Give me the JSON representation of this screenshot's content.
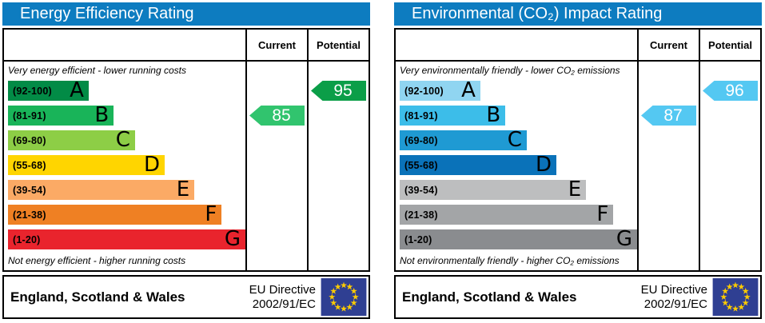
{
  "colors": {
    "title_bar_blue": "#0d7cc0",
    "eu_flag_blue": "#2f3f92",
    "eu_star_yellow": "#ffcc00",
    "border_black": "#000000"
  },
  "panels": [
    {
      "title": "Energy Efficiency Rating",
      "columns": {
        "current": "Current",
        "potential": "Potential"
      },
      "top_caption": "Very energy efficient - lower running costs",
      "bottom_caption": "Not energy efficient - higher running costs",
      "bands": [
        {
          "label": "(92-100)",
          "letter": "A",
          "color": "#028b46",
          "width_pct": 34
        },
        {
          "label": "(81-91)",
          "letter": "B",
          "color": "#19b459",
          "width_pct": 44.5
        },
        {
          "label": "(69-80)",
          "letter": "C",
          "color": "#8dce46",
          "width_pct": 53.5
        },
        {
          "label": "(55-68)",
          "letter": "D",
          "color": "#ffd500",
          "width_pct": 66
        },
        {
          "label": "(39-54)",
          "letter": "E",
          "color": "#fbaa65",
          "width_pct": 78.5
        },
        {
          "label": "(21-38)",
          "letter": "F",
          "color": "#ef8023",
          "width_pct": 90
        },
        {
          "label": "(1-20)",
          "letter": "G",
          "color": "#e9242d",
          "width_pct": 100
        }
      ],
      "current": {
        "value": "85",
        "band_index": 1,
        "color": "#31c46e"
      },
      "potential": {
        "value": "95",
        "band_index": 0,
        "color": "#0b9e48"
      },
      "footer": {
        "region": "England, Scotland & Wales",
        "directive_line1": "EU Directive",
        "directive_line2": "2002/91/EC"
      }
    },
    {
      "title": "Environmental (CO₂) Impact Rating",
      "columns": {
        "current": "Current",
        "potential": "Potential"
      },
      "top_caption": "Very environmentally friendly - lower CO₂ emissions",
      "bottom_caption": "Not environmentally friendly - higher CO₂ emissions",
      "bands": [
        {
          "label": "(92-100)",
          "letter": "A",
          "color": "#90d5f1",
          "width_pct": 34
        },
        {
          "label": "(81-91)",
          "letter": "B",
          "color": "#3cbde9",
          "width_pct": 44.5
        },
        {
          "label": "(69-80)",
          "letter": "C",
          "color": "#1f9ad3",
          "width_pct": 53.5
        },
        {
          "label": "(55-68)",
          "letter": "D",
          "color": "#0a72b9",
          "width_pct": 66
        },
        {
          "label": "(39-54)",
          "letter": "E",
          "color": "#bdbebf",
          "width_pct": 78.5
        },
        {
          "label": "(21-38)",
          "letter": "F",
          "color": "#a3a5a7",
          "width_pct": 90
        },
        {
          "label": "(1-20)",
          "letter": "G",
          "color": "#8a8c8f",
          "width_pct": 100
        }
      ],
      "current": {
        "value": "87",
        "band_index": 1,
        "color": "#54c8f2"
      },
      "potential": {
        "value": "96",
        "band_index": 0,
        "color": "#54c8f2"
      },
      "footer": {
        "region": "England, Scotland & Wales",
        "directive_line1": "EU Directive",
        "directive_line2": "2002/91/EC"
      }
    }
  ],
  "chart_data": [
    {
      "type": "bar",
      "title": "Energy Efficiency Rating",
      "categories": [
        "A (92-100)",
        "B (81-91)",
        "C (69-80)",
        "D (55-68)",
        "E (39-54)",
        "F (21-38)",
        "G (1-20)"
      ],
      "values": [
        34,
        44.5,
        53.5,
        66,
        78.5,
        90,
        100
      ],
      "value_meaning": "fixed band bar lengths, % of chart width",
      "current_rating": 85,
      "current_band": "B",
      "potential_rating": 95,
      "potential_band": "A",
      "top_caption": "Very energy efficient - lower running costs",
      "bottom_caption": "Not energy efficient - higher running costs",
      "legend_position": "none",
      "grid": false
    },
    {
      "type": "bar",
      "title": "Environmental (CO₂) Impact Rating",
      "categories": [
        "A (92-100)",
        "B (81-91)",
        "C (69-80)",
        "D (55-68)",
        "E (39-54)",
        "F (21-38)",
        "G (1-20)"
      ],
      "values": [
        34,
        44.5,
        53.5,
        66,
        78.5,
        90,
        100
      ],
      "value_meaning": "fixed band bar lengths, % of chart width",
      "current_rating": 87,
      "current_band": "B",
      "potential_rating": 96,
      "potential_band": "A",
      "top_caption": "Very environmentally friendly - lower CO₂ emissions",
      "bottom_caption": "Not environmentally friendly - higher CO₂ emissions",
      "legend_position": "none",
      "grid": false
    }
  ]
}
